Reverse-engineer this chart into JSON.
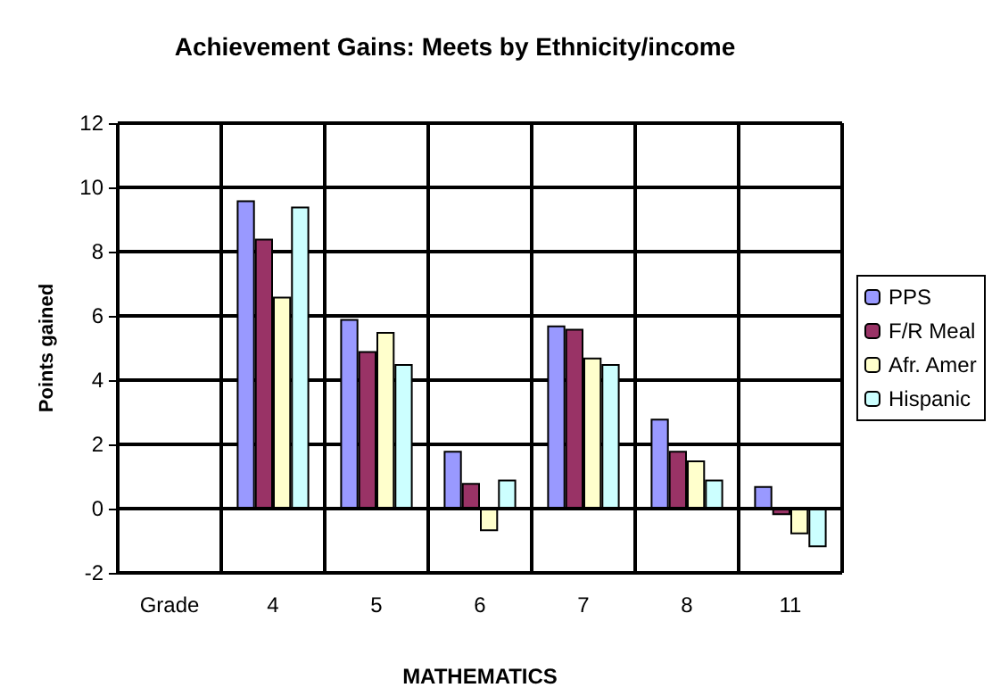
{
  "chart_data": {
    "type": "bar",
    "title": "Achievement Gains: Meets by Ethnicity/income",
    "xlabel": "MATHEMATICS",
    "ylabel": "Points gained",
    "categories": [
      "Grade",
      "4",
      "5",
      "6",
      "7",
      "8",
      "11"
    ],
    "series": [
      {
        "name": "PPS",
        "color": "#9999ff",
        "values": [
          null,
          9.6,
          5.9,
          1.8,
          5.7,
          2.8,
          0.7
        ]
      },
      {
        "name": "F/R Meal",
        "color": "#993366",
        "values": [
          null,
          8.4,
          4.9,
          0.8,
          5.6,
          1.8,
          -0.2
        ]
      },
      {
        "name": "Afr. Amer",
        "color": "#ffffcc",
        "values": [
          null,
          6.6,
          5.5,
          -0.7,
          4.7,
          1.5,
          -0.8
        ]
      },
      {
        "name": "Hispanic",
        "color": "#ccffff",
        "values": [
          null,
          9.4,
          4.5,
          0.9,
          4.5,
          0.9,
          -1.2
        ]
      }
    ],
    "ylim": [
      -2,
      12
    ],
    "yticks": [
      -2,
      0,
      2,
      4,
      6,
      8,
      10,
      12
    ],
    "grid": true,
    "legend": "right"
  }
}
